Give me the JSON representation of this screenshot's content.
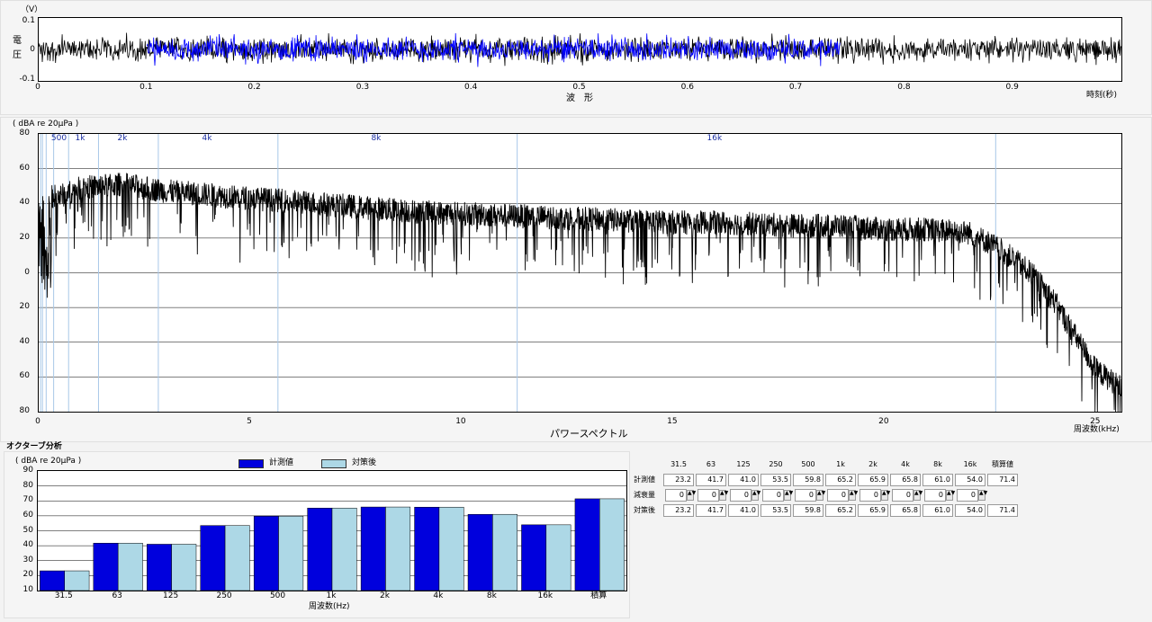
{
  "waveform": {
    "unit_label": "（V）",
    "ylabel_chars": [
      "電",
      "圧"
    ],
    "title": "波　形",
    "xlabel": "時刻(秒)",
    "y_ticks": [
      "0.1",
      "0",
      "-0.1"
    ],
    "x_ticks": [
      "0",
      "0.1",
      "0.2",
      "0.3",
      "0.4",
      "0.5",
      "0.6",
      "0.7",
      "0.8",
      "0.9"
    ],
    "colors": {
      "raw": "#000000",
      "selected": "#0000ff"
    }
  },
  "spectrum": {
    "unit_label": "( dBA re 20μPa )",
    "title": "パワースペクトル",
    "xlabel": "周波数(kHz)",
    "y_ticks": [
      "80",
      "60",
      "40",
      "20",
      "0",
      "20",
      "40",
      "60",
      "80"
    ],
    "x_ticks": [
      "0",
      "5",
      "10",
      "15",
      "20",
      "25"
    ],
    "band_labels": [
      "500",
      "1k",
      "2k",
      "4k",
      "8k",
      "16k"
    ],
    "colors": {
      "band_line": "#a8c8e8",
      "band_text": "#1a2ea0"
    }
  },
  "octave": {
    "section_title": "オクターブ分析",
    "unit_label": "( dBA re 20μPa )",
    "xlabel": "周波数(Hz)",
    "legend": {
      "measured": "計測値",
      "treated": "対策後"
    },
    "y_ticks": [
      "90",
      "80",
      "70",
      "60",
      "50",
      "40",
      "30",
      "20",
      "10"
    ],
    "colors": {
      "measured": "#0000dd",
      "treated": "#add8e6"
    }
  },
  "chart_data": [
    {
      "type": "line",
      "title": "波　形",
      "xlabel": "時刻(秒)",
      "ylabel": "電圧（V）",
      "xlim": [
        0,
        1.0
      ],
      "ylim": [
        -0.1,
        0.1
      ],
      "series": [
        {
          "x": [
            0,
            1.0
          ],
          "y": [
            0,
            0
          ]
        }
      ],
      "annotations": {
        "selected_range": [
          0.1,
          0.74
        ]
      },
      "grid": false
    },
    {
      "type": "line",
      "title": "パワースペクトル",
      "xlabel": "周波数(kHz)",
      "ylabel": "dBA re 20μPa",
      "xlim": [
        0,
        25.6
      ],
      "ylim": [
        -80,
        80
      ],
      "x": [
        0.5,
        1,
        2,
        3,
        4,
        5,
        6,
        7,
        8,
        9,
        10,
        11,
        12,
        13,
        14,
        15,
        16,
        17,
        18,
        19,
        20,
        21,
        22,
        22.5,
        23,
        23.5,
        24,
        24.5,
        25,
        25.6
      ],
      "series": [
        {
          "values": [
            45,
            50,
            52,
            48,
            46,
            44,
            42,
            40,
            38,
            36,
            35,
            34,
            33,
            32,
            31,
            30,
            30,
            29,
            28,
            28,
            26,
            26,
            24,
            18,
            10,
            0,
            -15,
            -35,
            -55,
            -65
          ]
        }
      ],
      "band_centers_khz": [
        0.5,
        1,
        2,
        4,
        8,
        16
      ],
      "grid": true
    },
    {
      "type": "bar",
      "title": "オクターブ分析",
      "xlabel": "周波数(Hz)",
      "ylabel": "dBA re 20μPa",
      "ylim": [
        10,
        90
      ],
      "categories": [
        "31.5",
        "63",
        "125",
        "250",
        "500",
        "1k",
        "2k",
        "4k",
        "8k",
        "16k",
        "積算"
      ],
      "series": [
        {
          "name": "計測値",
          "values": [
            23.2,
            41.7,
            41.0,
            53.5,
            59.8,
            65.2,
            65.9,
            65.8,
            61.0,
            54.0,
            71.4
          ]
        },
        {
          "name": "対策後",
          "values": [
            23.2,
            41.7,
            41.0,
            53.5,
            59.8,
            65.2,
            65.9,
            65.8,
            61.0,
            54.0,
            71.4
          ]
        }
      ],
      "legend": "top",
      "grid": true
    },
    {
      "type": "table",
      "columns": [
        "31.5",
        "63",
        "125",
        "250",
        "500",
        "1k",
        "2k",
        "4k",
        "8k",
        "16k",
        "積算値"
      ],
      "rows": [
        {
          "label": "計測値",
          "values": [
            "23.2",
            "41.7",
            "41.0",
            "53.5",
            "59.8",
            "65.2",
            "65.9",
            "65.8",
            "61.0",
            "54.0",
            "71.4"
          ]
        },
        {
          "label": "減衰量",
          "values": [
            "0",
            "0",
            "0",
            "0",
            "0",
            "0",
            "0",
            "0",
            "0",
            "0"
          ]
        },
        {
          "label": "対策後",
          "values": [
            "23.2",
            "41.7",
            "41.0",
            "53.5",
            "59.8",
            "65.2",
            "65.9",
            "65.8",
            "61.0",
            "54.0",
            "71.4"
          ]
        }
      ]
    }
  ]
}
